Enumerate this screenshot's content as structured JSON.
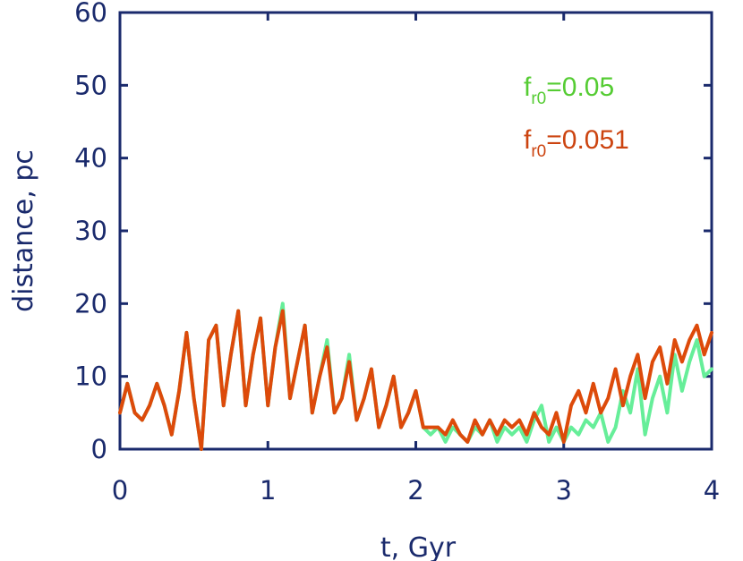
{
  "chart_data": {
    "type": "line",
    "title": "",
    "xlabel": "t, Gyr",
    "ylabel": "distance, pc",
    "xlim": [
      0,
      4
    ],
    "ylim": [
      0,
      60
    ],
    "xticks": [
      "0",
      "1",
      "2",
      "3",
      "4"
    ],
    "yticks": [
      "0",
      "10",
      "20",
      "30",
      "40",
      "50",
      "60"
    ],
    "grid": false,
    "legend_position": "top-right",
    "series": [
      {
        "name": "f_r0=0.05",
        "legend_main": "f",
        "legend_sub": "r0",
        "legend_value": "=0.05",
        "color": "#66ee99",
        "legend_color": "#55cc33",
        "x": [
          0.0,
          0.05,
          0.1,
          0.15,
          0.2,
          0.25,
          0.3,
          0.35,
          0.4,
          0.45,
          0.5,
          0.55,
          0.6,
          0.65,
          0.7,
          0.75,
          0.8,
          0.85,
          0.9,
          0.95,
          1.0,
          1.05,
          1.1,
          1.15,
          1.2,
          1.25,
          1.3,
          1.35,
          1.4,
          1.45,
          1.5,
          1.55,
          1.6,
          1.65,
          1.7,
          1.75,
          1.8,
          1.85,
          1.9,
          1.95,
          2.0,
          2.05,
          2.1,
          2.15,
          2.2,
          2.25,
          2.3,
          2.35,
          2.4,
          2.45,
          2.5,
          2.55,
          2.6,
          2.65,
          2.7,
          2.75,
          2.8,
          2.85,
          2.9,
          2.95,
          3.0,
          3.05,
          3.1,
          3.15,
          3.2,
          3.25,
          3.3,
          3.35,
          3.4,
          3.45,
          3.5,
          3.55,
          3.6,
          3.65,
          3.7,
          3.75,
          3.8,
          3.85,
          3.9,
          3.95,
          4.0
        ],
        "values": [
          5,
          9,
          5,
          4,
          6,
          9,
          6,
          2,
          8,
          16,
          7,
          0,
          15,
          17,
          6,
          13,
          19,
          6,
          13,
          18,
          6,
          14,
          20,
          7,
          12,
          17,
          5,
          10,
          15,
          5,
          7,
          13,
          4,
          7,
          11,
          3,
          6,
          10,
          3,
          5,
          8,
          3,
          2,
          3,
          1,
          3,
          2,
          1,
          3,
          2,
          4,
          1,
          3,
          2,
          3,
          1,
          4,
          6,
          1,
          3,
          1,
          3,
          2,
          4,
          3,
          5,
          1,
          3,
          8,
          5,
          11,
          2,
          7,
          10,
          5,
          13,
          8,
          12,
          15,
          10,
          11
        ],
        "data_note": ""
      },
      {
        "name": "f_r0=0.051",
        "legend_main": "f",
        "legend_sub": "r0",
        "legend_value": "=0.051",
        "color": "#dd4a0a",
        "legend_color": "#cc4410",
        "x": [
          0.0,
          0.05,
          0.1,
          0.15,
          0.2,
          0.25,
          0.3,
          0.35,
          0.4,
          0.45,
          0.5,
          0.55,
          0.6,
          0.65,
          0.7,
          0.75,
          0.8,
          0.85,
          0.9,
          0.95,
          1.0,
          1.05,
          1.1,
          1.15,
          1.2,
          1.25,
          1.3,
          1.35,
          1.4,
          1.45,
          1.5,
          1.55,
          1.6,
          1.65,
          1.7,
          1.75,
          1.8,
          1.85,
          1.9,
          1.95,
          2.0,
          2.05,
          2.1,
          2.15,
          2.2,
          2.25,
          2.3,
          2.35,
          2.4,
          2.45,
          2.5,
          2.55,
          2.6,
          2.65,
          2.7,
          2.75,
          2.8,
          2.85,
          2.9,
          2.95,
          3.0,
          3.05,
          3.1,
          3.15,
          3.2,
          3.25,
          3.3,
          3.35,
          3.4,
          3.45,
          3.5,
          3.55,
          3.6,
          3.65,
          3.7,
          3.75,
          3.8,
          3.85,
          3.9,
          3.95,
          4.0
        ],
        "values": [
          5,
          9,
          5,
          4,
          6,
          9,
          6,
          2,
          8,
          16,
          7,
          0,
          15,
          17,
          6,
          13,
          19,
          6,
          13,
          18,
          6,
          14,
          19,
          7,
          12,
          17,
          5,
          10,
          14,
          5,
          7,
          12,
          4,
          7,
          11,
          3,
          6,
          10,
          3,
          5,
          8,
          3,
          3,
          3,
          2,
          4,
          2,
          1,
          4,
          2,
          4,
          2,
          4,
          3,
          4,
          2,
          5,
          3,
          2,
          5,
          1,
          6,
          8,
          5,
          9,
          5,
          7,
          11,
          6,
          10,
          13,
          7,
          12,
          14,
          9,
          15,
          12,
          15,
          17,
          13,
          16
        ]
      }
    ]
  }
}
